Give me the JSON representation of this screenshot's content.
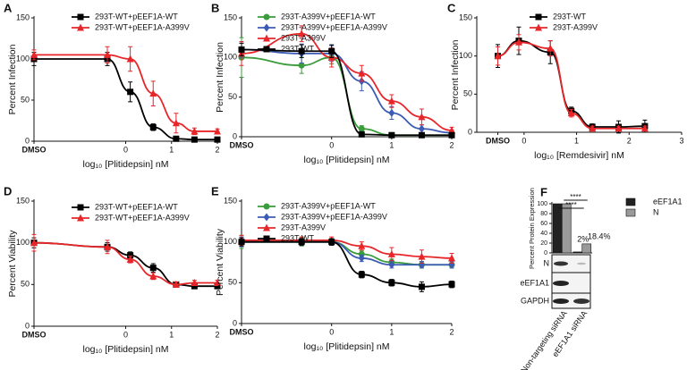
{
  "chart_data": [
    {
      "type": "line",
      "panel_label": "A",
      "y_label": "Percent Infection",
      "x_label": "log₁₀ [Plitidepsin] nM",
      "xlim": [
        -2,
        2
      ],
      "xticks": [
        {
          "value": -2,
          "label": "DMSO"
        },
        0,
        1,
        2
      ],
      "ylim": [
        0,
        150
      ],
      "yticks": [
        0,
        50,
        100,
        150
      ],
      "legend": "upper left",
      "series": [
        {
          "name": "293T-WT+pEEF1A-WT",
          "color": "#000000",
          "marker": "square",
          "x": [
            -2,
            -0.4,
            0.1,
            0.6,
            1.1,
            1.5,
            2
          ],
          "values": [
            100,
            100,
            60,
            17,
            3,
            2,
            2
          ],
          "errors": [
            8,
            8,
            12,
            4,
            2,
            2,
            2
          ]
        },
        {
          "name": "293T-WT+pEEF1A-A399V",
          "color": "#e8262a",
          "marker": "triangle",
          "x": [
            -2,
            -0.4,
            0.1,
            0.6,
            1.1,
            1.5,
            2
          ],
          "values": [
            105,
            105,
            100,
            58,
            22,
            12,
            12
          ],
          "errors": [
            6,
            10,
            15,
            15,
            12,
            4,
            3
          ]
        }
      ]
    },
    {
      "type": "line",
      "panel_label": "B",
      "y_label": "Percent Infection",
      "x_label": "log₁₀ [Plitidepsin] nM",
      "xlim": [
        -1.5,
        2
      ],
      "xticks": [
        {
          "value": -1.5,
          "label": "DMSO"
        },
        0,
        1,
        2
      ],
      "ylim": [
        0,
        150
      ],
      "yticks": [
        0,
        50,
        100,
        150
      ],
      "legend": "upper right",
      "series": [
        {
          "name": "293T-A399V+pEEF1A-WT",
          "color": "#3a9c3a",
          "marker": "circle",
          "x": [
            -1.5,
            -0.5,
            0,
            0.5,
            1,
            1.5,
            2
          ],
          "values": [
            100,
            90,
            100,
            10,
            2,
            2,
            2
          ],
          "errors": [
            25,
            10,
            8,
            4,
            2,
            2,
            2
          ]
        },
        {
          "name": "293T-A399V+pEEF1A-A399V",
          "color": "#3b5bb5",
          "marker": "diamond",
          "x": [
            -1.5,
            -0.5,
            0,
            0.5,
            1,
            1.5,
            2
          ],
          "values": [
            110,
            105,
            105,
            70,
            30,
            10,
            5
          ],
          "errors": [
            10,
            12,
            10,
            12,
            8,
            5,
            3
          ]
        },
        {
          "name": "293T-A399V",
          "color": "#e8262a",
          "marker": "triangle",
          "x": [
            -1.5,
            -0.5,
            0,
            0.5,
            1,
            1.5,
            2
          ],
          "values": [
            105,
            130,
            100,
            80,
            45,
            25,
            8
          ],
          "errors": [
            15,
            10,
            12,
            10,
            8,
            10,
            4
          ]
        },
        {
          "name": "293T-WT",
          "color": "#000000",
          "marker": "square",
          "x": [
            -1.5,
            -0.5,
            0,
            0.5,
            1,
            1.5,
            2
          ],
          "values": [
            110,
            108,
            108,
            3,
            2,
            2,
            2
          ],
          "errors": [
            8,
            8,
            8,
            2,
            2,
            2,
            2
          ]
        }
      ]
    },
    {
      "type": "line",
      "panel_label": "C",
      "y_label": "Percent Infection",
      "x_label": "log₁₀ [Remdesivir] nM",
      "xlim": [
        -0.9,
        3
      ],
      "xticks": [
        {
          "value": -0.5,
          "label": "DMSO"
        },
        0,
        1,
        2,
        3
      ],
      "ylim": [
        0,
        150
      ],
      "yticks": [
        0,
        50,
        100,
        150
      ],
      "legend": "upper right",
      "series": [
        {
          "name": "293T-WT",
          "color": "#000000",
          "marker": "square",
          "x": [
            -0.5,
            -0.1,
            0.5,
            0.9,
            1.3,
            1.8,
            2.3
          ],
          "values": [
            100,
            120,
            105,
            28,
            7,
            7,
            8
          ],
          "errors": [
            15,
            18,
            15,
            5,
            4,
            8,
            8
          ]
        },
        {
          "name": "293T-A399V",
          "color": "#e8262a",
          "marker": "triangle",
          "x": [
            -0.5,
            -0.1,
            0.5,
            0.9,
            1.3,
            1.8,
            2.3
          ],
          "values": [
            100,
            118,
            110,
            25,
            5,
            5,
            5
          ],
          "errors": [
            12,
            10,
            10,
            5,
            3,
            3,
            3
          ]
        }
      ]
    },
    {
      "type": "line",
      "panel_label": "D",
      "y_label": "Percent Viability",
      "x_label": "log₁₀ [Plitidepsin] nM",
      "xlim": [
        -2,
        2
      ],
      "xticks": [
        {
          "value": -2,
          "label": "DMSO"
        },
        0,
        1,
        2
      ],
      "ylim": [
        0,
        150
      ],
      "yticks": [
        0,
        50,
        100,
        150
      ],
      "legend": "upper left",
      "series": [
        {
          "name": "293T-WT+pEEF1A-WT",
          "color": "#000000",
          "marker": "square",
          "x": [
            -2,
            -0.4,
            0.1,
            0.6,
            1.1,
            1.5,
            2
          ],
          "values": [
            100,
            95,
            85,
            70,
            50,
            48,
            48
          ],
          "errors": [
            6,
            5,
            4,
            5,
            3,
            3,
            3
          ]
        },
        {
          "name": "293T-WT+pEEF1A-A399V",
          "color": "#e8262a",
          "marker": "triangle",
          "x": [
            -2,
            -0.4,
            0.1,
            0.6,
            1.1,
            1.5,
            2
          ],
          "values": [
            100,
            95,
            80,
            60,
            50,
            52,
            52
          ],
          "errors": [
            10,
            8,
            4,
            4,
            3,
            3,
            3
          ]
        }
      ]
    },
    {
      "type": "line",
      "panel_label": "E",
      "y_label": "Percent Viability",
      "x_label": "log₁₀ [Plitidepsin] nM",
      "xlim": [
        -1.5,
        2
      ],
      "xticks": [
        {
          "value": -1.5,
          "label": "DMSO"
        },
        0,
        1,
        2
      ],
      "ylim": [
        0,
        150
      ],
      "yticks": [
        0,
        50,
        100,
        150
      ],
      "legend": "upper right",
      "series": [
        {
          "name": "293T-A399V+pEEF1A-WT",
          "color": "#3a9c3a",
          "marker": "circle",
          "x": [
            -1.5,
            -0.5,
            0,
            0.5,
            1,
            1.5,
            2
          ],
          "values": [
            100,
            100,
            100,
            85,
            75,
            72,
            72
          ],
          "errors": [
            8,
            5,
            4,
            4,
            4,
            4,
            4
          ]
        },
        {
          "name": "293T-A399V+pEEF1A-A399V",
          "color": "#3b5bb5",
          "marker": "diamond",
          "x": [
            -1.5,
            -0.5,
            0,
            0.5,
            1,
            1.5,
            2
          ],
          "values": [
            100,
            100,
            100,
            80,
            72,
            72,
            72
          ],
          "errors": [
            6,
            4,
            4,
            4,
            4,
            4,
            4
          ]
        },
        {
          "name": "293T-A399V",
          "color": "#e8262a",
          "marker": "triangle",
          "x": [
            -1.5,
            -0.5,
            0,
            0.5,
            1,
            1.5,
            2
          ],
          "values": [
            102,
            102,
            102,
            95,
            85,
            82,
            80
          ],
          "errors": [
            6,
            4,
            4,
            5,
            8,
            8,
            6
          ]
        },
        {
          "name": "293T-WT",
          "color": "#000000",
          "marker": "square",
          "x": [
            -1.5,
            -0.5,
            0,
            0.5,
            1,
            1.5,
            2
          ],
          "values": [
            100,
            100,
            100,
            60,
            50,
            45,
            48
          ],
          "errors": [
            5,
            4,
            4,
            4,
            4,
            6,
            4
          ]
        }
      ]
    },
    {
      "type": "bar",
      "panel_label": "F",
      "y_label": "Percent Protein Expression",
      "categories": [
        "Non-targeting siRNA",
        "eEF1A1 siRNA"
      ],
      "ylim": [
        0,
        100
      ],
      "yticks": [
        0,
        20,
        40,
        60,
        80,
        100
      ],
      "series": [
        {
          "name": "eEF1A1",
          "color": "#222222",
          "values": [
            100,
            2
          ],
          "value_labels": [
            null,
            "2%"
          ]
        },
        {
          "name": "N",
          "color": "#9a9a9a",
          "values": [
            100,
            18.4
          ],
          "value_labels": [
            null,
            "18.4%"
          ]
        }
      ],
      "annotations": [
        "****",
        "****"
      ],
      "blot_rows": [
        "N",
        "eEF1A1",
        "GAPDH"
      ]
    }
  ]
}
